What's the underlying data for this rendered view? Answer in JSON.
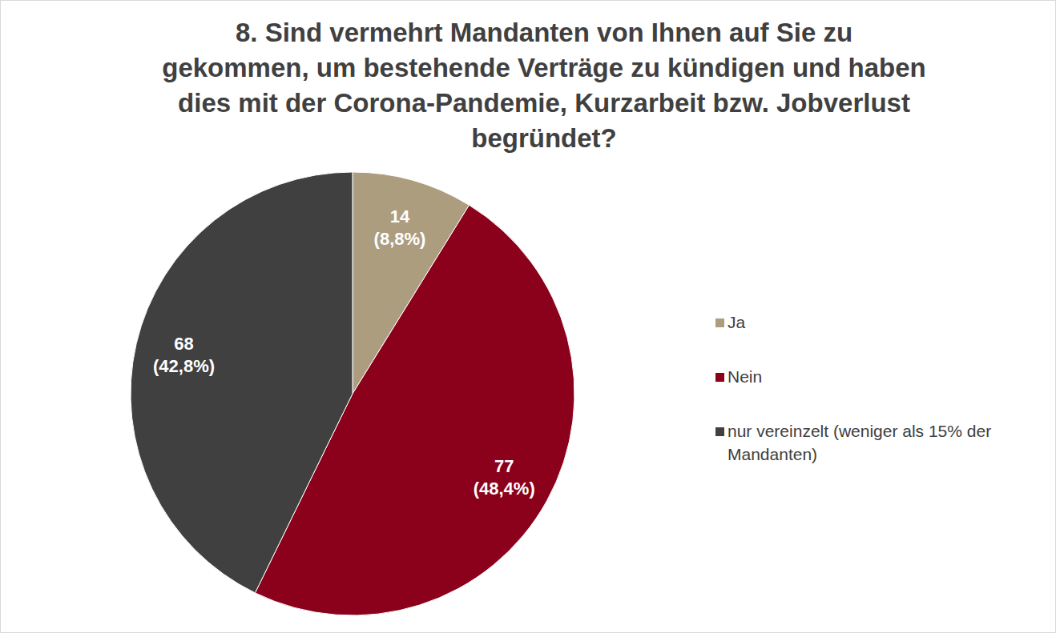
{
  "chart_data": {
    "type": "pie",
    "title": "8. Sind vermehrt Mandanten von Ihnen auf Sie zu gekommen, um bestehende Verträge zu kündigen und haben dies mit der Corona-Pandemie, Kurzarbeit bzw. Jobverlust begründet?",
    "categories": [
      "Ja",
      "Nein",
      "nur vereinzelt (weniger als 15% der Mandanten)"
    ],
    "values": [
      14,
      77,
      68
    ],
    "percentages": [
      8.8,
      48.4,
      42.8
    ],
    "percentage_labels": [
      "(8,8%)",
      "(48,4%)",
      "(42,8%)"
    ],
    "colors": [
      "#ad9d7f",
      "#8b001a",
      "#404040"
    ],
    "data_labels": true,
    "legend": "right"
  }
}
